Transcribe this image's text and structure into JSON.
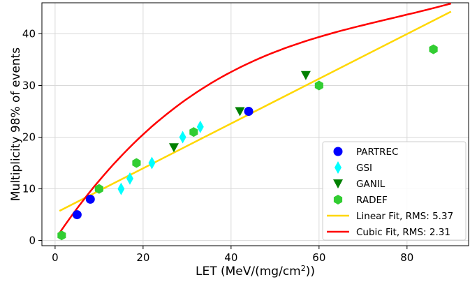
{
  "chart_data": {
    "type": "scatter",
    "xlabel_main": "LET (MeV/(mg/cm",
    "xlabel_sup": "2",
    "xlabel_end": "))",
    "ylabel": "Multiplicity 98% of events",
    "xlim": [
      -3,
      94
    ],
    "ylim": [
      -1,
      46
    ],
    "xticks": [
      0,
      20,
      40,
      60,
      80
    ],
    "yticks": [
      0,
      10,
      20,
      30,
      40
    ],
    "grid": true,
    "legend_position": "bottom-right",
    "series": [
      {
        "name": "PARTREC",
        "marker": "circle",
        "color": "#0000ff",
        "points": [
          [
            5,
            5
          ],
          [
            8,
            8
          ],
          [
            44,
            25
          ]
        ]
      },
      {
        "name": "GSI",
        "marker": "diamond",
        "color": "#00ffff",
        "points": [
          [
            15,
            10
          ],
          [
            17,
            12
          ],
          [
            22,
            15
          ],
          [
            29,
            20
          ],
          [
            33,
            22
          ]
        ]
      },
      {
        "name": "GANIL",
        "marker": "triangle-down",
        "color": "#008000",
        "points": [
          [
            27,
            18
          ],
          [
            42,
            25
          ],
          [
            57,
            32
          ]
        ]
      },
      {
        "name": "RADEF",
        "marker": "hexagon",
        "color": "#32cd32",
        "points": [
          [
            1.5,
            1
          ],
          [
            10,
            10
          ],
          [
            18.5,
            15
          ],
          [
            31.5,
            21
          ],
          [
            60,
            30
          ],
          [
            86,
            37
          ]
        ]
      }
    ],
    "fits": [
      {
        "name": "Linear Fit, RMS: 5.37",
        "color": "#ffd700",
        "type": "linear",
        "coef": [
          5.3,
          0.4333
        ],
        "range": [
          1,
          90
        ]
      },
      {
        "name": "Cubic Fit, RMS: 2.31",
        "color": "#ff0000",
        "type": "cubic",
        "coef": [
          0.2,
          1.27,
          -0.0139,
          6.03e-05
        ],
        "range": [
          1,
          90
        ]
      }
    ]
  }
}
